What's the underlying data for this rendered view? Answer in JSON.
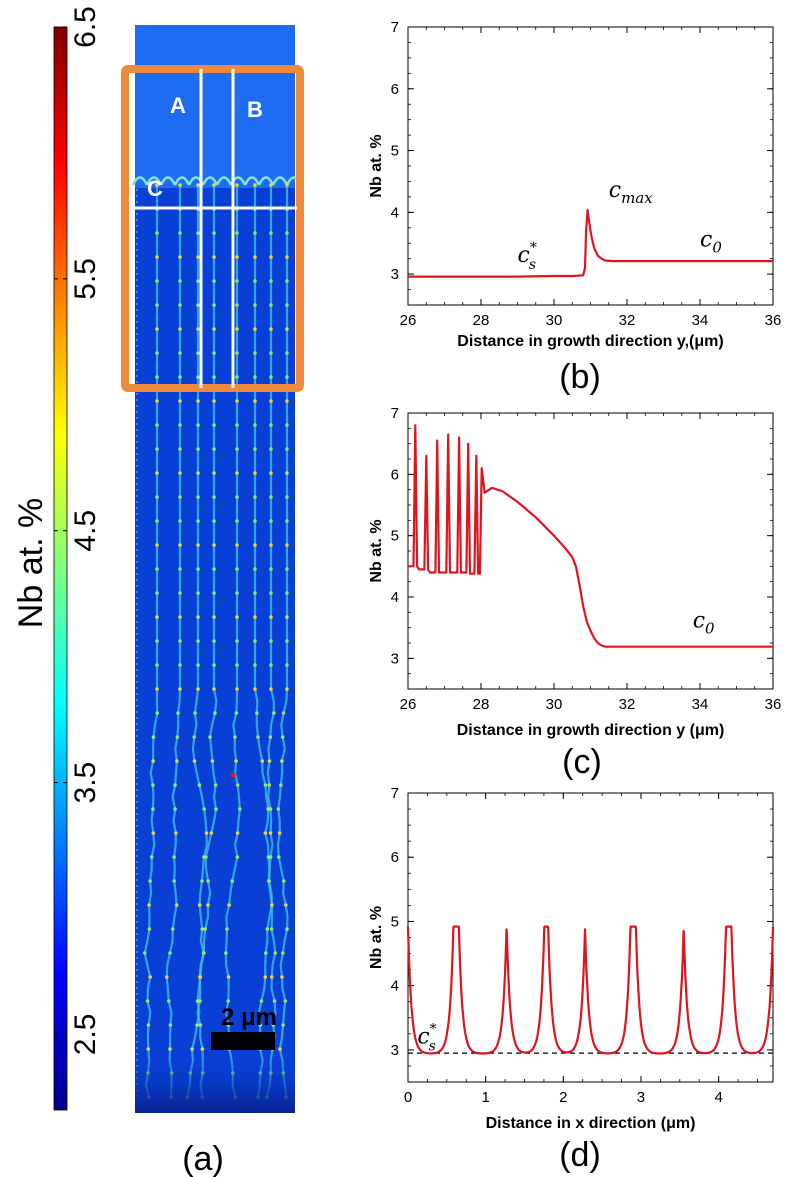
{
  "colors": {
    "curve": "#e0141c",
    "axis": "#000000",
    "highlight_box": "#ee8a3a",
    "liquid": "#1d6cf2",
    "solid": "#0a3fd6",
    "scale_bar": "#000000"
  },
  "colorbar": {
    "label": "Nb at. %",
    "ticks": [
      "2.5",
      "3.5",
      "4.5",
      "5.5",
      "6.5"
    ],
    "min": 2.2,
    "max": 6.5,
    "colormap": "jet"
  },
  "panel_a": {
    "caption": "(a)",
    "labels": [
      "A",
      "B",
      "C"
    ],
    "scale_bar_label": "2 μm"
  },
  "chart_data": [
    {
      "id": "b",
      "type": "line",
      "caption": "(b)",
      "xlabel": "Distance in growth direction y,(μm)",
      "ylabel": "Nb at. %",
      "xlim": [
        26,
        36
      ],
      "ylim": [
        2.5,
        7
      ],
      "xticks": [
        26,
        28,
        30,
        32,
        34,
        36
      ],
      "yticks": [
        3,
        4,
        5,
        6,
        7
      ],
      "annotations": [
        {
          "text_base": "c",
          "text_sub": "max",
          "at": [
            31.5,
            4.25
          ]
        },
        {
          "text_base": "c",
          "text_sup": "*",
          "text_sub": "s",
          "at": [
            29.0,
            3.2
          ]
        },
        {
          "text_base": "c",
          "text_sub": "0",
          "at": [
            34.0,
            3.45
          ]
        }
      ],
      "series": [
        {
          "name": "Nb",
          "x": [
            26,
            27,
            28,
            29,
            30,
            30.5,
            30.8,
            30.85,
            30.88,
            30.92,
            30.95,
            31.0,
            31.05,
            31.1,
            31.2,
            31.3,
            31.4,
            31.6,
            32,
            33,
            34,
            35,
            36
          ],
          "y": [
            2.96,
            2.96,
            2.96,
            2.96,
            2.97,
            2.97,
            2.98,
            3.1,
            3.7,
            4.04,
            3.9,
            3.7,
            3.55,
            3.42,
            3.3,
            3.25,
            3.22,
            3.21,
            3.21,
            3.21,
            3.21,
            3.21,
            3.21
          ]
        }
      ]
    },
    {
      "id": "c",
      "type": "line",
      "caption": "(c)",
      "xlabel": "Distance in growth direction y (μm)",
      "ylabel": "Nb at. %",
      "xlim": [
        26,
        36
      ],
      "ylim": [
        2.5,
        7
      ],
      "xticks": [
        26,
        28,
        30,
        32,
        34,
        36
      ],
      "yticks": [
        3,
        4,
        5,
        6,
        7
      ],
      "annotations": [
        {
          "text_base": "c",
          "text_sub": "0",
          "at": [
            33.8,
            3.5
          ]
        }
      ],
      "series": [
        {
          "name": "Nb",
          "x": [
            26.0,
            26.15,
            26.2,
            26.25,
            26.3,
            26.45,
            26.5,
            26.55,
            26.6,
            26.75,
            26.8,
            26.85,
            26.9,
            27.05,
            27.1,
            27.15,
            27.2,
            27.35,
            27.4,
            27.45,
            27.5,
            27.6,
            27.65,
            27.7,
            27.75,
            27.82,
            27.87,
            27.92,
            27.97,
            28.02,
            28.1,
            28.3,
            28.6,
            29.0,
            29.5,
            30.0,
            30.3,
            30.5,
            30.6,
            30.7,
            30.8,
            30.9,
            31.0,
            31.1,
            31.2,
            31.3,
            31.4,
            31.6,
            32,
            33,
            34,
            35,
            36
          ],
          "y": [
            4.5,
            4.5,
            6.8,
            4.5,
            4.45,
            4.45,
            6.3,
            4.45,
            4.4,
            4.4,
            6.55,
            4.4,
            4.4,
            4.4,
            6.65,
            4.4,
            4.4,
            4.4,
            6.6,
            4.4,
            4.4,
            4.4,
            6.5,
            4.38,
            4.38,
            4.38,
            6.3,
            4.38,
            4.38,
            6.1,
            5.7,
            5.78,
            5.72,
            5.55,
            5.3,
            5.0,
            4.8,
            4.65,
            4.5,
            4.2,
            3.85,
            3.6,
            3.45,
            3.33,
            3.25,
            3.21,
            3.19,
            3.19,
            3.19,
            3.19,
            3.19,
            3.19,
            3.19
          ]
        }
      ]
    },
    {
      "id": "d",
      "type": "line",
      "caption": "(d)",
      "xlabel": "Distance in x direction (μm)",
      "ylabel": "Nb at. %",
      "xlim": [
        0,
        4.7
      ],
      "ylim": [
        2.5,
        7
      ],
      "xticks": [
        0,
        1,
        2,
        3,
        4
      ],
      "yticks": [
        3,
        4,
        5,
        6,
        7
      ],
      "reference_line": {
        "y": 2.95,
        "style": "dashed"
      },
      "annotations": [
        {
          "text_base": "c",
          "text_sup": "*",
          "text_sub": "s",
          "at": [
            0.12,
            3.1
          ]
        }
      ],
      "series": [
        {
          "name": "Nb",
          "peaks": [
            {
              "x": 0.0,
              "h": 4.92,
              "flat": 0.0
            },
            {
              "x": 0.62,
              "h": 4.92,
              "flat": 0.07
            },
            {
              "x": 1.27,
              "h": 4.92,
              "flat": 0.0
            },
            {
              "x": 1.78,
              "h": 4.92,
              "flat": 0.05
            },
            {
              "x": 2.28,
              "h": 4.9,
              "flat": 0.0
            },
            {
              "x": 2.9,
              "h": 4.92,
              "flat": 0.07
            },
            {
              "x": 3.55,
              "h": 4.92,
              "flat": 0.0
            },
            {
              "x": 4.13,
              "h": 4.92,
              "flat": 0.07
            },
            {
              "x": 4.7,
              "h": 4.92,
              "flat": 0.0
            }
          ],
          "baseline": 2.94
        }
      ]
    }
  ]
}
